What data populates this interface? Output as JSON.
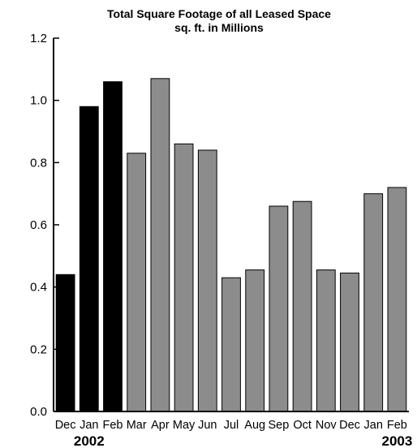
{
  "chart_data": {
    "type": "bar",
    "title": "Total Square Footage of all Leased Space",
    "subtitle": "sq. ft. in Millions",
    "xlabel": "",
    "ylabel": "",
    "categories": [
      "Dec",
      "Jan",
      "Feb",
      "Mar",
      "Apr",
      "May",
      "Jun",
      "Jul",
      "Aug",
      "Sep",
      "Oct",
      "Nov",
      "Dec",
      "Jan",
      "Feb"
    ],
    "values": [
      0.44,
      0.98,
      1.06,
      0.83,
      1.07,
      0.86,
      0.84,
      0.43,
      0.455,
      0.66,
      0.675,
      0.455,
      0.445,
      0.7,
      0.72
    ],
    "bar_fill": [
      "#000000",
      "#000000",
      "#000000",
      "#8c8c8c",
      "#8c8c8c",
      "#8c8c8c",
      "#8c8c8c",
      "#8c8c8c",
      "#8c8c8c",
      "#8c8c8c",
      "#8c8c8c",
      "#8c8c8c",
      "#8c8c8c",
      "#8c8c8c",
      "#8c8c8c"
    ],
    "ylim": [
      0,
      1.2
    ],
    "yticks": [
      "0.0",
      "0.2",
      "0.4",
      "0.6",
      "0.8",
      "1.0",
      "1.2"
    ],
    "year_labels": [
      {
        "text": "2002",
        "category_index": 1
      },
      {
        "text": "2003",
        "category_index": 14
      }
    ],
    "grid": false,
    "legend": "none"
  }
}
